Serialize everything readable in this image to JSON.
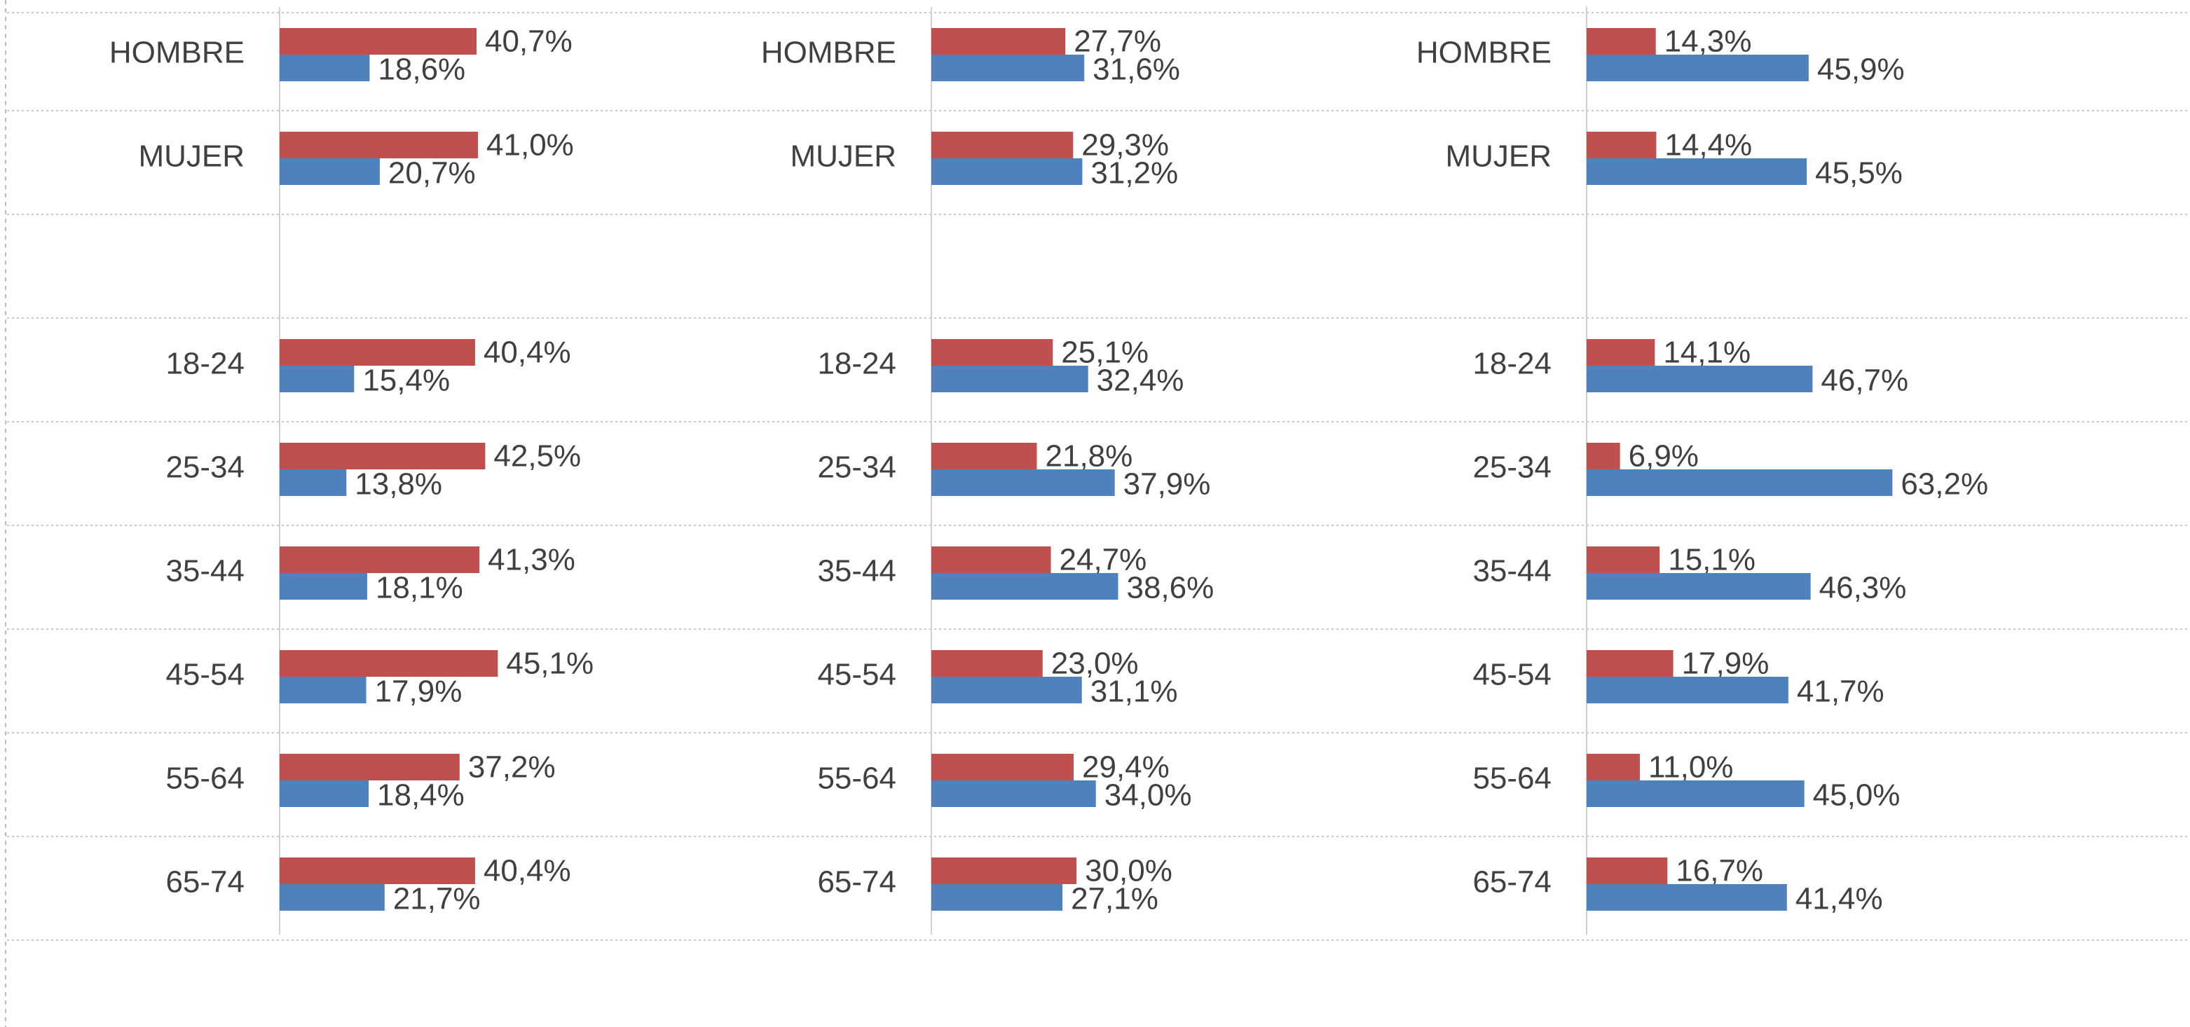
{
  "chart_data": [
    {
      "type": "hbar",
      "categories": [
        "HOMBRE",
        "MUJER",
        null,
        "18-24",
        "25-34",
        "35-44",
        "45-54",
        "55-64",
        "65-74"
      ],
      "xlim": [
        0,
        135
      ],
      "series": [
        {
          "color": "#c0504d",
          "values": [
            40.7,
            41.0,
            null,
            40.4,
            42.5,
            41.3,
            45.1,
            37.2,
            40.4
          ],
          "value_labels": [
            "40,7%",
            "41,0%",
            null,
            "40,4%",
            "42,5%",
            "41,3%",
            "45,1%",
            "37,2%",
            "40,4%"
          ]
        },
        {
          "color": "#4f81bd",
          "values": [
            18.6,
            20.7,
            null,
            15.4,
            13.8,
            18.1,
            17.9,
            18.4,
            21.7
          ],
          "value_labels": [
            "18,6%",
            "20,7%",
            null,
            "15,4%",
            "13,8%",
            "18,1%",
            "17,9%",
            "18,4%",
            "21,7%"
          ]
        }
      ]
    },
    {
      "type": "hbar",
      "categories": [
        "HOMBRE",
        "MUJER",
        null,
        "18-24",
        "25-34",
        "35-44",
        "45-54",
        "55-64",
        "65-74"
      ],
      "xlim": [
        0,
        135
      ],
      "series": [
        {
          "color": "#c0504d",
          "values": [
            27.7,
            29.3,
            null,
            25.1,
            21.8,
            24.7,
            23.0,
            29.4,
            30.0
          ],
          "value_labels": [
            "27,7%",
            "29,3%",
            null,
            "25,1%",
            "21,8%",
            "24,7%",
            "23,0%",
            "29,4%",
            "30,0%"
          ]
        },
        {
          "color": "#4f81bd",
          "values": [
            31.6,
            31.2,
            null,
            32.4,
            37.9,
            38.6,
            31.1,
            34.0,
            27.1
          ],
          "value_labels": [
            "31,6%",
            "31,2%",
            null,
            "32,4%",
            "37,9%",
            "38,6%",
            "31,1%",
            "34,0%",
            "27,1%"
          ]
        }
      ]
    },
    {
      "type": "hbar",
      "categories": [
        "HOMBRE",
        "MUJER",
        null,
        "18-24",
        "25-34",
        "35-44",
        "45-54",
        "55-64",
        "65-74"
      ],
      "xlim": [
        0,
        135
      ],
      "series": [
        {
          "color": "#c0504d",
          "values": [
            14.3,
            14.4,
            null,
            14.1,
            6.9,
            15.1,
            17.9,
            11.0,
            16.7
          ],
          "value_labels": [
            "14,3%",
            "14,4%",
            null,
            "14,1%",
            "6,9%",
            "15,1%",
            "17,9%",
            "11,0%",
            "16,7%"
          ]
        },
        {
          "color": "#4f81bd",
          "values": [
            45.9,
            45.5,
            null,
            46.7,
            63.2,
            46.3,
            41.7,
            45.0,
            41.4
          ],
          "value_labels": [
            "45,9%",
            "45,5%",
            null,
            "46,7%",
            "63,2%",
            "46,3%",
            "41,7%",
            "45,0%",
            "41,4%"
          ]
        }
      ]
    }
  ]
}
